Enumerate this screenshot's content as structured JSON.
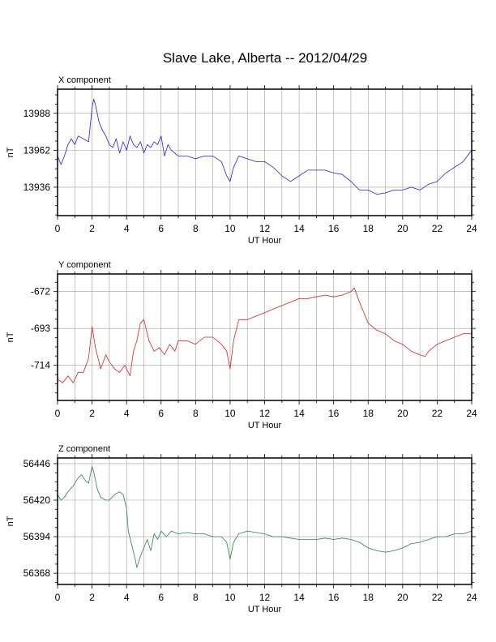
{
  "title": "Slave Lake, Alberta -- 2012/04/29",
  "chart_data": [
    {
      "type": "line",
      "name": "X component",
      "xlabel": "UT Hour",
      "ylabel": "nT",
      "xlim": [
        0,
        24
      ],
      "ylim": [
        13916,
        14005
      ],
      "xticks": [
        0,
        2,
        4,
        6,
        8,
        10,
        12,
        14,
        16,
        18,
        20,
        22,
        24
      ],
      "yticks": [
        13936,
        13962,
        13988
      ],
      "grid": true,
      "color": "#2020e0",
      "series": [
        {
          "x": [
            0,
            0.2,
            0.4,
            0.6,
            0.8,
            1,
            1.2,
            1.5,
            1.8,
            2,
            2.1,
            2.2,
            2.4,
            2.6,
            2.8,
            3,
            3.2,
            3.4,
            3.6,
            3.8,
            4,
            4.2,
            4.4,
            4.6,
            4.8,
            5,
            5.2,
            5.4,
            5.6,
            5.8,
            6,
            6.2,
            6.4,
            6.6,
            6.8,
            7,
            7.5,
            8,
            8.5,
            9,
            9.5,
            9.8,
            10,
            10.2,
            10.5,
            11,
            11.5,
            12,
            12.5,
            13,
            13.5,
            14,
            14.5,
            15,
            15.5,
            16,
            16.5,
            17,
            17.5,
            18,
            18.5,
            19,
            19.5,
            20,
            20.5,
            21,
            21.5,
            22,
            22.5,
            23,
            23.5,
            24
          ],
          "y": [
            13958,
            13952,
            13958,
            13966,
            13970,
            13966,
            13972,
            13970,
            13968,
            13992,
            13998,
            13994,
            13982,
            13976,
            13972,
            13966,
            13964,
            13970,
            13960,
            13968,
            13962,
            13972,
            13966,
            13964,
            13968,
            13960,
            13966,
            13964,
            13968,
            13966,
            13972,
            13958,
            13966,
            13962,
            13960,
            13958,
            13958,
            13956,
            13958,
            13958,
            13954,
            13944,
            13940,
            13950,
            13958,
            13956,
            13954,
            13954,
            13950,
            13944,
            13940,
            13944,
            13948,
            13948,
            13948,
            13946,
            13945,
            13940,
            13934,
            13934,
            13931,
            13932,
            13934,
            13934,
            13936,
            13934,
            13938,
            13940,
            13946,
            13950,
            13954,
            13962
          ]
        }
      ]
    },
    {
      "type": "line",
      "name": "Y component",
      "xlabel": "UT Hour",
      "ylabel": "nT",
      "xlim": [
        0,
        24
      ],
      "ylim": [
        -734,
        -662
      ],
      "xticks": [
        0,
        2,
        4,
        6,
        8,
        10,
        12,
        14,
        16,
        18,
        20,
        22,
        24
      ],
      "yticks": [
        -672,
        -693,
        -714
      ],
      "grid": true,
      "color": "#e02020",
      "series": [
        {
          "x": [
            0,
            0.3,
            0.6,
            0.9,
            1.2,
            1.5,
            1.8,
            2,
            2.2,
            2.5,
            2.8,
            3,
            3.3,
            3.6,
            3.9,
            4.2,
            4.4,
            4.6,
            4.8,
            5,
            5.3,
            5.6,
            5.9,
            6.2,
            6.5,
            6.8,
            7,
            7.5,
            8,
            8.5,
            9,
            9.5,
            9.8,
            10,
            10.2,
            10.5,
            11,
            11.5,
            12,
            12.5,
            13,
            13.5,
            14,
            14.5,
            15,
            15.5,
            16,
            16.5,
            17,
            17.2,
            17.5,
            18,
            18.5,
            19,
            19.5,
            20,
            20.5,
            21,
            21.3,
            21.5,
            22,
            22.5,
            23,
            23.5,
            24
          ],
          "y": [
            -722,
            -724,
            -720,
            -724,
            -718,
            -718,
            -710,
            -692,
            -704,
            -716,
            -708,
            -712,
            -716,
            -718,
            -714,
            -720,
            -706,
            -700,
            -690,
            -688,
            -700,
            -706,
            -704,
            -708,
            -702,
            -706,
            -700,
            -700,
            -702,
            -698,
            -698,
            -702,
            -706,
            -716,
            -700,
            -688,
            -688,
            -686,
            -684,
            -682,
            -680,
            -678,
            -676,
            -676,
            -675,
            -674,
            -675,
            -674,
            -672,
            -670,
            -678,
            -690,
            -694,
            -696,
            -700,
            -702,
            -706,
            -708,
            -709,
            -706,
            -702,
            -700,
            -698,
            -696,
            -696
          ]
        }
      ]
    },
    {
      "type": "line",
      "name": "Z component",
      "xlabel": "UT Hour",
      "ylabel": "nT",
      "xlim": [
        0,
        24
      ],
      "ylim": [
        56360,
        56450
      ],
      "xticks": [
        0,
        2,
        4,
        6,
        8,
        10,
        12,
        14,
        16,
        18,
        20,
        22,
        24
      ],
      "yticks": [
        56368,
        56394,
        56420,
        56446
      ],
      "grid": true,
      "color": "#2e7d4a",
      "series": [
        {
          "x": [
            0,
            0.2,
            0.4,
            0.6,
            0.9,
            1.2,
            1.4,
            1.6,
            1.8,
            2,
            2.1,
            2.3,
            2.5,
            2.8,
            3,
            3.3,
            3.6,
            3.8,
            4,
            4.1,
            4.3,
            4.5,
            4.6,
            4.8,
            5,
            5.2,
            5.4,
            5.6,
            5.8,
            6,
            6.3,
            6.6,
            7,
            7.5,
            8,
            8.5,
            9,
            9.5,
            9.8,
            10,
            10.2,
            10.5,
            11,
            11.5,
            12,
            12.5,
            13,
            13.5,
            14,
            14.5,
            15,
            15.5,
            16,
            16.5,
            17,
            17.5,
            18,
            18.5,
            19,
            19.5,
            20,
            20.5,
            21,
            21.5,
            22,
            22.5,
            23,
            23.5,
            24
          ],
          "y": [
            56424,
            56420,
            56422,
            56426,
            56430,
            56436,
            56438,
            56434,
            56432,
            56444,
            56440,
            56428,
            56422,
            56420,
            56420,
            56424,
            56426,
            56424,
            56414,
            56398,
            56388,
            56378,
            56372,
            56380,
            56386,
            56392,
            56384,
            56396,
            56392,
            56398,
            56394,
            56398,
            56396,
            56397,
            56396,
            56396,
            56394,
            56394,
            56390,
            56378,
            56390,
            56396,
            56398,
            56397,
            56396,
            56394,
            56394,
            56393,
            56392,
            56392,
            56392,
            56393,
            56392,
            56393,
            56392,
            56390,
            56386,
            56384,
            56383,
            56384,
            56386,
            56389,
            56390,
            56392,
            56394,
            56394,
            56396,
            56396,
            56398
          ]
        }
      ]
    }
  ]
}
